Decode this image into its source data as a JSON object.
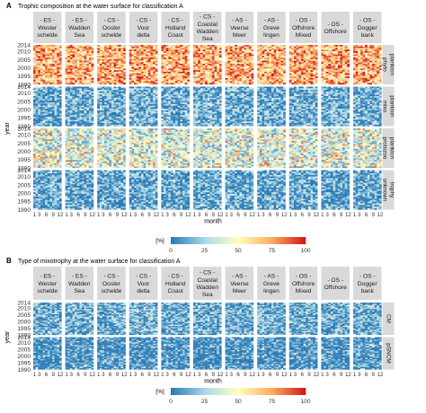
{
  "chart_data": [
    {
      "type": "heatmap",
      "panel_letter": "A",
      "title": "Trophic composition at the water surface for classification A",
      "xlabel": "month",
      "ylabel": "year",
      "x_tick_labels": [
        "1",
        "3",
        "6",
        "9",
        "12"
      ],
      "y_tick_labels": [
        "1990",
        "1995",
        "2000",
        "2005",
        "2010",
        "2014"
      ],
      "xlim": [
        1,
        12
      ],
      "ylim": [
        1990,
        2014
      ],
      "columns": [
        {
          "l1": "- ES -",
          "l2": "Wester",
          "l3": "schelde"
        },
        {
          "l1": "- ES -",
          "l2": "Wadden",
          "l3": "Sea"
        },
        {
          "l1": "- CS -",
          "l2": "Ooster",
          "l3": "schelde"
        },
        {
          "l1": "- CS -",
          "l2": "Voor",
          "l3": "delta"
        },
        {
          "l1": "- CS -",
          "l2": "Holland",
          "l3": "Coast"
        },
        {
          "l1": "- CS -",
          "l2": "Coastal",
          "l3": "Wadden",
          "l4": "Sea"
        },
        {
          "l1": "- AS -",
          "l2": "Veerse",
          "l3": "Meer"
        },
        {
          "l1": "- AS -",
          "l2": "Greve",
          "l3": "lingen"
        },
        {
          "l1": "- OS -",
          "l2": "Offshore",
          "l3": "Mixed"
        },
        {
          "l1": "- OS -",
          "l2": "Offshore",
          "l3": ""
        },
        {
          "l1": "- OS -",
          "l2": "Dogger",
          "l3": "bank"
        }
      ],
      "rows": [
        {
          "l1": "phyto",
          "l2": "plankton",
          "level": 0.7
        },
        {
          "l1": "mixo",
          "l2": "plankton",
          "level": 0.12
        },
        {
          "l1": "protozoo",
          "l2": "plankton",
          "level": 0.3
        },
        {
          "l1": "unknown",
          "l2": "trophy",
          "level": 0.1
        }
      ],
      "legend": {
        "title": "[%]",
        "ticks": [
          "0",
          "25",
          "50",
          "75",
          "100"
        ]
      },
      "colors": [
        "#2c7bb6",
        "#abd9e9",
        "#ffffbf",
        "#fdae61",
        "#d7191c"
      ]
    },
    {
      "type": "heatmap",
      "panel_letter": "B",
      "title": "Type of mixotrophy at the water surface for classification A",
      "xlabel": "month",
      "ylabel": "year",
      "x_tick_labels": [
        "1",
        "3",
        "6",
        "9",
        "12"
      ],
      "y_tick_labels": [
        "1990",
        "1995",
        "2000",
        "2005",
        "2010",
        "2014"
      ],
      "xlim": [
        1,
        12
      ],
      "ylim": [
        1990,
        2014
      ],
      "columns": [
        {
          "l1": "- ES -",
          "l2": "Wester",
          "l3": "schelde"
        },
        {
          "l1": "- ES -",
          "l2": "Wadden",
          "l3": "Sea"
        },
        {
          "l1": "- CS -",
          "l2": "Ooster",
          "l3": "schelde"
        },
        {
          "l1": "- CS -",
          "l2": "Voor",
          "l3": "delta"
        },
        {
          "l1": "- CS -",
          "l2": "Holland",
          "l3": "Coast"
        },
        {
          "l1": "- CS -",
          "l2": "Coastal",
          "l3": "Wadden",
          "l4": "Sea"
        },
        {
          "l1": "- AS -",
          "l2": "Veerse",
          "l3": "Meer"
        },
        {
          "l1": "- AS -",
          "l2": "Greve",
          "l3": "lingen"
        },
        {
          "l1": "- OS -",
          "l2": "Offshore",
          "l3": "Mixed"
        },
        {
          "l1": "- OS -",
          "l2": "Offshore",
          "l3": ""
        },
        {
          "l1": "- OS -",
          "l2": "Dogger",
          "l3": "bank"
        }
      ],
      "rows": [
        {
          "l1": "CM",
          "l2": "",
          "level": 0.12
        },
        {
          "l1": "pSNCM",
          "l2": "",
          "level": 0.03
        }
      ],
      "legend": {
        "title": "[%]",
        "ticks": [
          "0",
          "25",
          "50",
          "75",
          "100"
        ]
      },
      "colors": [
        "#2c7bb6",
        "#abd9e9",
        "#ffffbf",
        "#fdae61",
        "#d7191c"
      ]
    }
  ]
}
